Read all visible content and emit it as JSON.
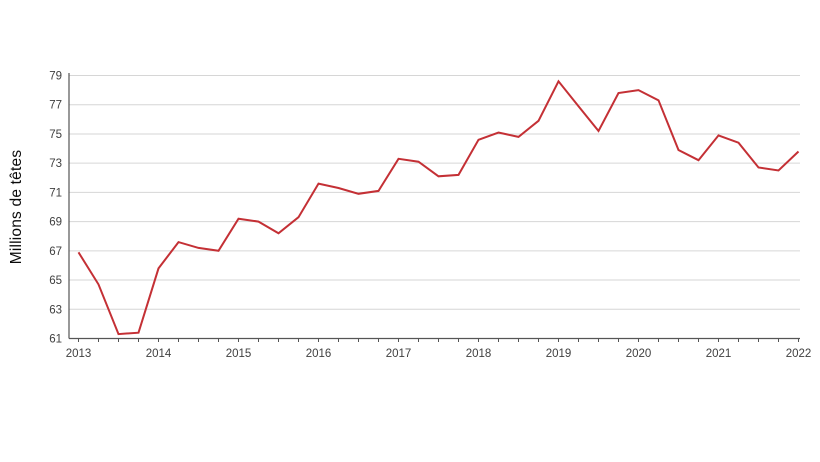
{
  "chart_data": {
    "type": "line",
    "title": "",
    "ylabel": "Millions de têtes",
    "xlabel": "",
    "ylim": [
      61,
      79
    ],
    "y_ticks": [
      61,
      63,
      65,
      67,
      69,
      71,
      73,
      75,
      77,
      79
    ],
    "x_tick_labels": [
      "2013",
      "2014",
      "2015",
      "2016",
      "2017",
      "2018",
      "2019",
      "2020",
      "2021",
      "2022"
    ],
    "frequency": "quarterly",
    "x_start": "2013 Q1",
    "x_end": "2022 Q1",
    "grid": true,
    "legend": false,
    "line_color": "#C43035",
    "grid_color": "#D6D6D6",
    "axis_color": "#555555",
    "tick_text_color": "#404040",
    "values": [
      66.9,
      64.7,
      61.3,
      61.4,
      65.8,
      67.6,
      67.2,
      67.0,
      69.2,
      69.0,
      68.2,
      69.3,
      71.6,
      71.3,
      70.9,
      71.1,
      73.3,
      73.1,
      72.1,
      72.2,
      74.6,
      75.1,
      74.8,
      75.9,
      78.6,
      76.9,
      75.2,
      77.8,
      78.0,
      77.3,
      73.9,
      73.2,
      74.9,
      74.4,
      72.7,
      72.5,
      73.8
    ]
  }
}
